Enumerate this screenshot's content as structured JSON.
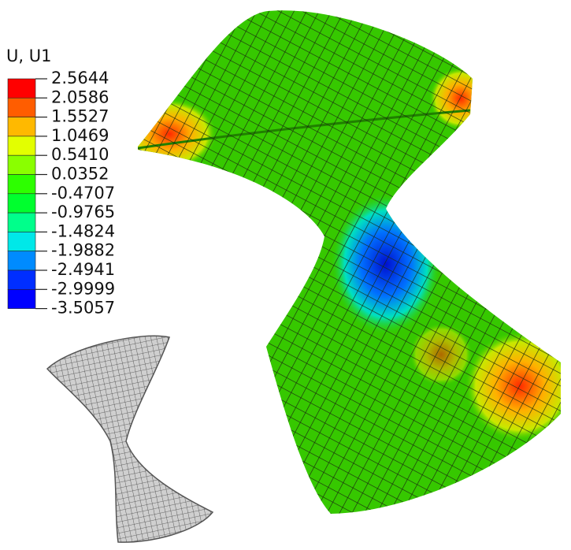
{
  "legend": {
    "title": "U, U1",
    "levels": [
      "2.5644",
      "2.0586",
      "1.5527",
      "1.0469",
      "0.5410",
      "0.0352",
      "-0.4707",
      "-0.9765",
      "-1.4824",
      "-1.9882",
      "-2.4941",
      "-2.9999",
      "-3.5057"
    ]
  }
}
